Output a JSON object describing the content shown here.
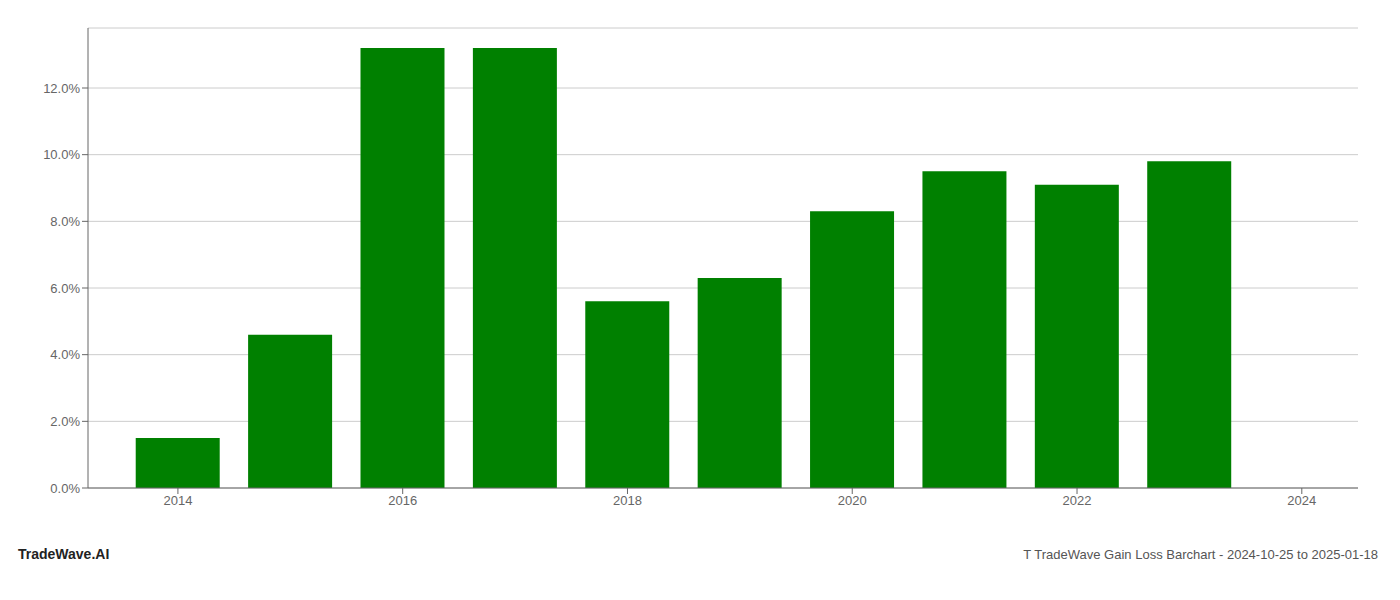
{
  "chart_data": {
    "type": "bar",
    "x": [
      2014,
      2015,
      2016,
      2017,
      2018,
      2019,
      2020,
      2021,
      2022,
      2023
    ],
    "values": [
      0.015,
      0.046,
      0.132,
      0.132,
      0.056,
      0.063,
      0.083,
      0.095,
      0.091,
      0.098
    ],
    "color": "#008000",
    "xlim": [
      2013.2,
      2024.5
    ],
    "xticks": [
      2014,
      2016,
      2018,
      2020,
      2022,
      2024
    ],
    "ylim": [
      0,
      0.138
    ],
    "yticks": [
      {
        "value": 0.0,
        "label": "0.0%"
      },
      {
        "value": 0.02,
        "label": "2.0%"
      },
      {
        "value": 0.04,
        "label": "4.0%"
      },
      {
        "value": 0.06,
        "label": "6.0%"
      },
      {
        "value": 0.08,
        "label": "8.0%"
      },
      {
        "value": 0.1,
        "label": "10.0%"
      },
      {
        "value": 0.12,
        "label": "12.0%"
      }
    ],
    "grid": true,
    "annotations": [
      "TradeWave.AI",
      "T TradeWave Gain Loss Barchart - 2024-10-25 to 2025-01-18"
    ]
  }
}
